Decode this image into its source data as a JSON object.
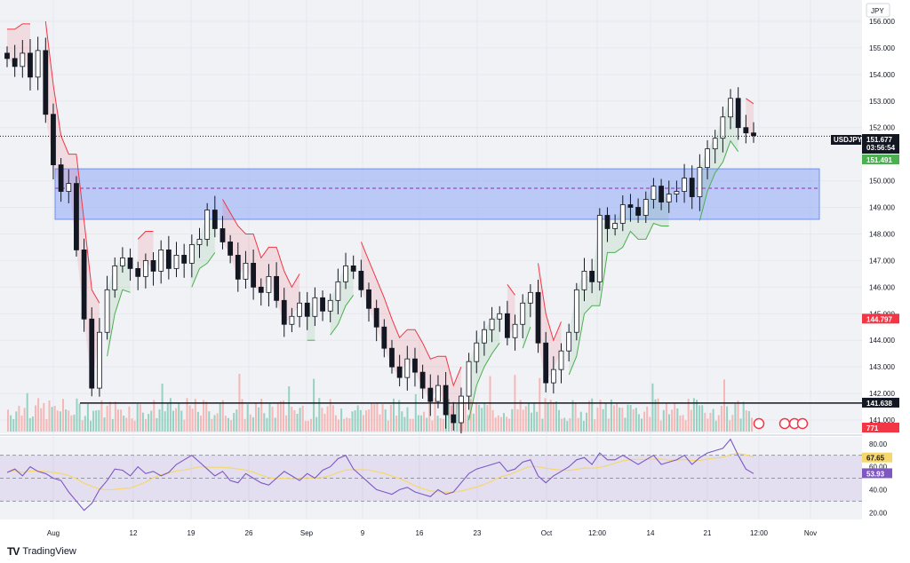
{
  "chart_data": {
    "type": "candlestick",
    "symbol": "USDJPY",
    "currency": "JPY",
    "last_price": "151.677",
    "countdown": "03:56:54",
    "stop_label": "151.491",
    "price_axis_ticks": [
      "156.000",
      "155.000",
      "154.000",
      "153.000",
      "152.000",
      "150.000",
      "149.000",
      "148.000",
      "147.000",
      "146.000",
      "145.000",
      "144.000",
      "143.000",
      "142.000",
      "141.000"
    ],
    "price_range": [
      140.5,
      156.8
    ],
    "time_labels": [
      "Aug",
      "12",
      "19",
      "26",
      "Sep",
      "9",
      "16",
      "23",
      "Oct",
      "12:00",
      "14",
      "21",
      "12:00",
      "Nov"
    ],
    "levels": [
      {
        "name": "support-line",
        "value": 141.638,
        "label": "141.638",
        "color": "#131722"
      },
      {
        "name": "red-level",
        "value": 144.797,
        "label": "144.797",
        "color": "#f23645"
      }
    ],
    "volume_label": "771",
    "zone": {
      "top": 150.45,
      "bottom": 148.55,
      "mid": 149.72,
      "color": "#8ea8f5"
    },
    "close_series": [
      154.6,
      154.3,
      154.8,
      153.9,
      154.9,
      152.5,
      150.6,
      149.6,
      149.9,
      147.4,
      144.8,
      142.2,
      144.3,
      145.9,
      146.8,
      147.1,
      146.7,
      146.4,
      147.0,
      146.6,
      147.4,
      146.7,
      147.2,
      146.9,
      147.6,
      147.8,
      148.9,
      148.2,
      147.7,
      147.2,
      146.3,
      146.9,
      146.0,
      145.8,
      146.4,
      145.5,
      144.6,
      144.9,
      145.4,
      144.9,
      145.6,
      145.1,
      145.5,
      146.2,
      146.8,
      146.6,
      145.9,
      145.2,
      144.5,
      143.7,
      143.0,
      142.6,
      143.3,
      142.8,
      142.2,
      141.7,
      142.3,
      141.2,
      140.9,
      141.9,
      143.2,
      143.9,
      144.4,
      144.8,
      145.0,
      144.1,
      144.6,
      145.4,
      145.8,
      143.9,
      142.4,
      142.9,
      143.6,
      144.3,
      145.9,
      146.6,
      146.2,
      148.7,
      148.2,
      148.4,
      149.1,
      149.0,
      148.7,
      149.3,
      149.8,
      149.2,
      149.5,
      149.6,
      150.1,
      149.4,
      150.5,
      151.2,
      151.6,
      152.4,
      153.1,
      152.0,
      151.8,
      151.7
    ],
    "rsi": {
      "levels": [
        "80.00",
        "60.00",
        "40.00",
        "20.00"
      ],
      "range": [
        14,
        86
      ],
      "value_label": "53.93",
      "ma_label": "67.65",
      "series": [
        55,
        58,
        52,
        60,
        56,
        54,
        50,
        48,
        38,
        30,
        22,
        28,
        40,
        48,
        58,
        57,
        52,
        60,
        54,
        56,
        52,
        55,
        62,
        66,
        70,
        64,
        58,
        52,
        56,
        48,
        46,
        54,
        50,
        46,
        44,
        50,
        56,
        52,
        48,
        54,
        50,
        57,
        60,
        67,
        70,
        58,
        52,
        46,
        40,
        38,
        36,
        40,
        42,
        38,
        36,
        34,
        40,
        36,
        38,
        46,
        54,
        58,
        60,
        62,
        64,
        56,
        58,
        64,
        66,
        52,
        46,
        52,
        56,
        60,
        66,
        68,
        62,
        72,
        66,
        66,
        70,
        66,
        62,
        66,
        70,
        62,
        64,
        66,
        70,
        62,
        68,
        72,
        74,
        76,
        84,
        70,
        58,
        54
      ]
    }
  },
  "brand": {
    "name": "TradingView"
  }
}
